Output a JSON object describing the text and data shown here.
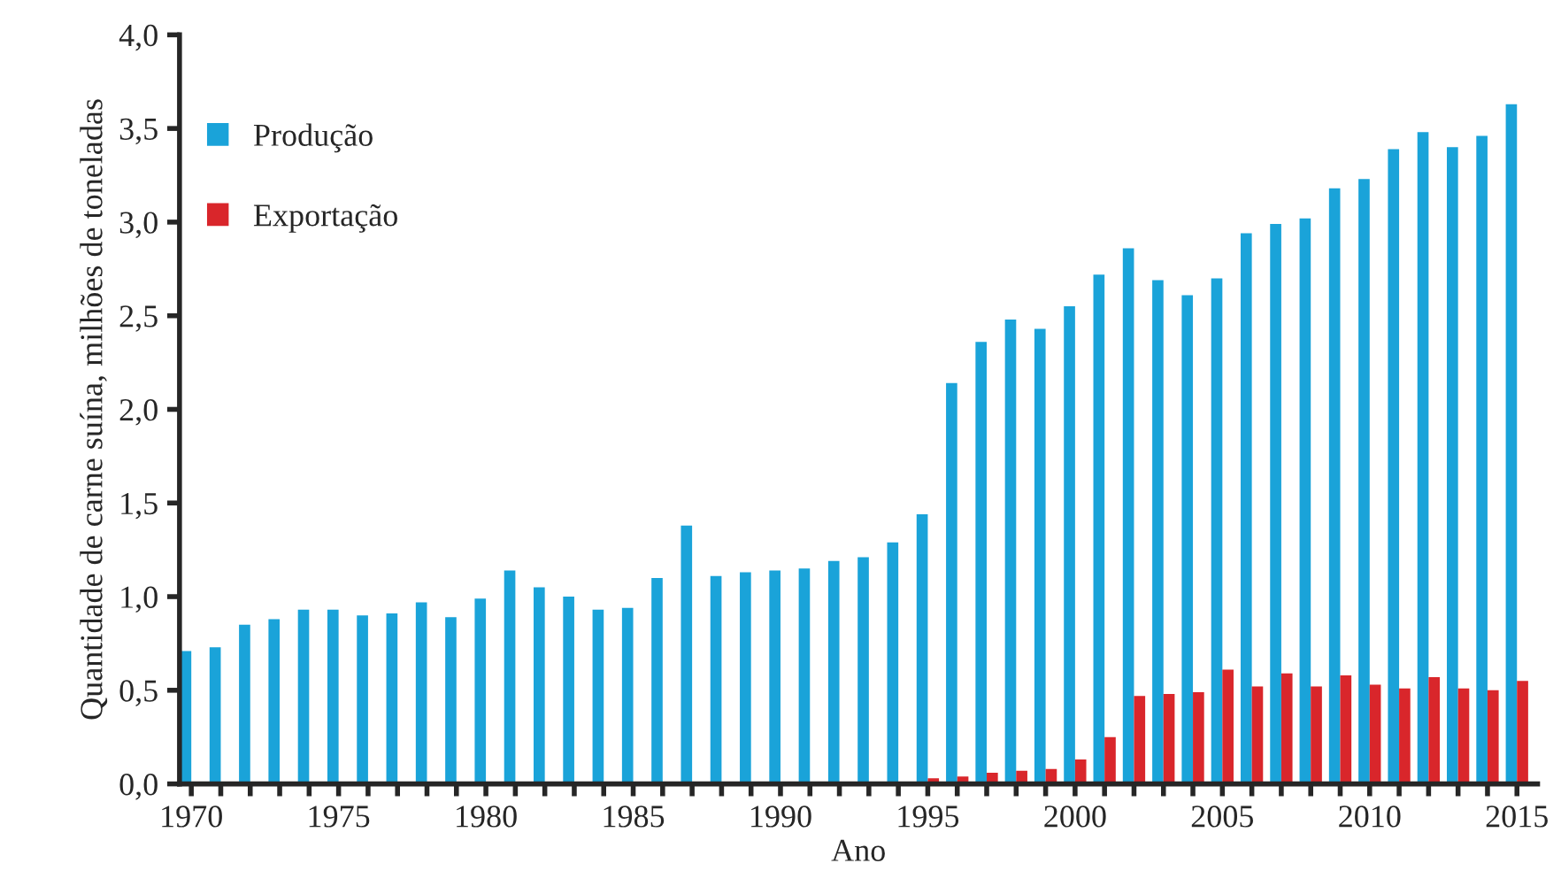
{
  "chart_data": {
    "type": "bar",
    "xlabel": "Ano",
    "ylabel": "Quantidade de carne suína, milhões de toneladas",
    "x": [
      1970,
      1971,
      1972,
      1973,
      1974,
      1975,
      1976,
      1977,
      1978,
      1979,
      1980,
      1981,
      1982,
      1983,
      1984,
      1985,
      1986,
      1987,
      1988,
      1989,
      1990,
      1991,
      1992,
      1993,
      1994,
      1995,
      1996,
      1997,
      1998,
      1999,
      2000,
      2001,
      2002,
      2003,
      2004,
      2005,
      2006,
      2007,
      2008,
      2009,
      2010,
      2011,
      2012,
      2013,
      2014,
      2015
    ],
    "series": [
      {
        "name": "Produção",
        "color": "#1aa3d9",
        "values": [
          0.71,
          0.73,
          0.85,
          0.88,
          0.93,
          0.93,
          0.9,
          0.91,
          0.97,
          0.89,
          0.99,
          1.14,
          1.05,
          1.0,
          0.93,
          0.94,
          1.1,
          1.38,
          1.11,
          1.13,
          1.14,
          1.15,
          1.19,
          1.21,
          1.29,
          1.44,
          2.14,
          2.36,
          2.48,
          2.43,
          2.55,
          2.72,
          2.86,
          2.69,
          2.61,
          2.7,
          2.94,
          2.99,
          3.02,
          3.18,
          3.23,
          3.39,
          3.48,
          3.4,
          3.46,
          3.63
        ]
      },
      {
        "name": "Exportação",
        "color": "#d9262b",
        "values": [
          null,
          null,
          null,
          null,
          null,
          null,
          null,
          null,
          null,
          null,
          null,
          null,
          null,
          null,
          null,
          null,
          null,
          null,
          null,
          null,
          null,
          null,
          null,
          null,
          null,
          0.03,
          0.04,
          0.06,
          0.07,
          0.08,
          0.13,
          0.25,
          0.47,
          0.48,
          0.49,
          0.61,
          0.52,
          0.59,
          0.52,
          0.58,
          0.53,
          0.51,
          0.57,
          0.51,
          0.5,
          0.55
        ]
      }
    ],
    "xlim": [
      1969.6,
      2015.7
    ],
    "xticks": [
      1970,
      {
        "value": 1971,
        "label": null
      },
      {
        "value": 1972,
        "label": null
      },
      {
        "value": 1973,
        "label": null
      },
      {
        "value": 1974,
        "label": null
      },
      1975,
      {
        "value": 1976,
        "label": null
      },
      {
        "value": 1977,
        "label": null
      },
      {
        "value": 1978,
        "label": null
      },
      {
        "value": 1979,
        "label": null
      },
      1980,
      {
        "value": 1981,
        "label": null
      },
      {
        "value": 1982,
        "label": null
      },
      {
        "value": 1983,
        "label": null
      },
      {
        "value": 1984,
        "label": null
      },
      1985,
      {
        "value": 1986,
        "label": null
      },
      {
        "value": 1987,
        "label": null
      },
      {
        "value": 1988,
        "label": null
      },
      {
        "value": 1989,
        "label": null
      },
      1990,
      {
        "value": 1991,
        "label": null
      },
      {
        "value": 1992,
        "label": null
      },
      {
        "value": 1993,
        "label": null
      },
      {
        "value": 1994,
        "label": null
      },
      1995,
      {
        "value": 1996,
        "label": null
      },
      {
        "value": 1997,
        "label": null
      },
      {
        "value": 1998,
        "label": null
      },
      {
        "value": 1999,
        "label": null
      },
      2000,
      {
        "value": 2001,
        "label": null
      },
      {
        "value": 2002,
        "label": null
      },
      {
        "value": 2003,
        "label": null
      },
      {
        "value": 2004,
        "label": null
      },
      2005,
      {
        "value": 2006,
        "label": null
      },
      {
        "value": 2007,
        "label": null
      },
      {
        "value": 2008,
        "label": null
      },
      {
        "value": 2009,
        "label": null
      },
      2010,
      {
        "value": 2011,
        "label": null
      },
      {
        "value": 2012,
        "label": null
      },
      {
        "value": 2013,
        "label": null
      },
      {
        "value": 2014,
        "label": null
      },
      2015
    ],
    "ylim": [
      0,
      4.0
    ],
    "yticks": [
      {
        "value": 0,
        "label": "0,0"
      },
      {
        "value": 0.5,
        "label": "0,5"
      },
      {
        "value": 1.0,
        "label": "1,0"
      },
      {
        "value": 1.5,
        "label": "1,5"
      },
      {
        "value": 2.0,
        "label": "2,0"
      },
      {
        "value": 2.5,
        "label": "2,5"
      },
      {
        "value": 3.0,
        "label": "3,0"
      },
      {
        "value": 3.5,
        "label": "3,5"
      },
      {
        "value": 4.0,
        "label": "4,0"
      }
    ],
    "grid": false,
    "legend": "top left"
  }
}
